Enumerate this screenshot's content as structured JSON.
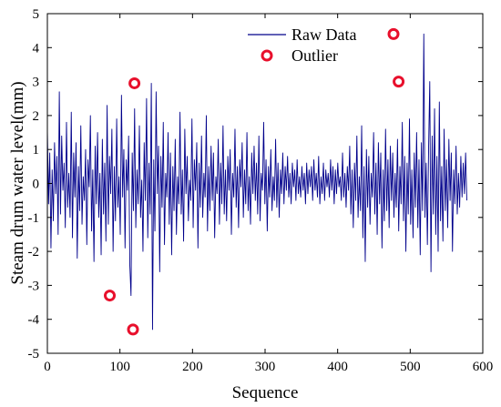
{
  "chart_data": {
    "type": "line",
    "title": "",
    "xlabel": "Sequence",
    "ylabel": "Steam drum water level(mm)",
    "xlim": [
      0,
      600
    ],
    "ylim": [
      -5,
      5
    ],
    "xticks": [
      0,
      100,
      200,
      300,
      400,
      500,
      600
    ],
    "yticks": [
      -5,
      -4,
      -3,
      -2,
      -1,
      0,
      1,
      2,
      3,
      4,
      5
    ],
    "grid": false,
    "legend_position": "top-right",
    "colors": {
      "raw": "#00008b",
      "outlier": "#e8102c"
    },
    "series": [
      {
        "name": "Raw Data",
        "values": [
          1.6,
          -0.6,
          0.9,
          -1.9,
          0.4,
          -1.1,
          1.2,
          -0.3,
          0.8,
          -1.5,
          2.7,
          -0.9,
          1.4,
          -0.2,
          0.6,
          -1.3,
          1.8,
          -0.7,
          0.3,
          -1.0,
          2.1,
          -1.6,
          0.9,
          -0.4,
          1.2,
          -2.2,
          0.5,
          -0.8,
          1.7,
          -1.2,
          0.2,
          -0.5,
          1.0,
          -1.8,
          0.7,
          -0.1,
          2.0,
          -1.4,
          0.4,
          -2.3,
          1.1,
          -0.6,
          1.5,
          -1.0,
          0.3,
          -2.1,
          1.3,
          -0.9,
          0.6,
          -1.7,
          2.3,
          -1.2,
          0.8,
          -0.3,
          1.6,
          -2.0,
          0.5,
          -1.1,
          1.9,
          -0.7,
          0.2,
          -1.5,
          2.6,
          -0.4,
          1.0,
          -1.9,
          0.7,
          -0.2,
          1.4,
          -2.4,
          -3.3,
          0.9,
          -0.8,
          2.2,
          -1.3,
          0.4,
          -0.6,
          1.7,
          -1.0,
          0.1,
          -2.0,
          1.2,
          -0.5,
          2.5,
          -1.6,
          0.6,
          -0.9,
          2.95,
          -4.3,
          0.7,
          -1.4,
          2.7,
          -0.3,
          1.1,
          -2.6,
          0.8,
          -0.7,
          1.8,
          -1.8,
          0.3,
          -0.4,
          1.5,
          -1.2,
          0.9,
          -2.1,
          0.5,
          -0.8,
          1.3,
          -1.5,
          0.2,
          -0.6,
          2.1,
          -0.9,
          0.4,
          -1.7,
          1.6,
          -0.3,
          0.8,
          -1.1,
          0.1,
          -0.5,
          1.9,
          -1.3,
          0.7,
          -0.2,
          1.2,
          -1.9,
          0.6,
          -0.7,
          1.4,
          -1.0,
          0.3,
          -0.4,
          2.0,
          -1.4,
          0.5,
          -0.8,
          1.1,
          -0.5,
          0.9,
          -1.6,
          0.2,
          -0.3,
          1.3,
          -1.2,
          0.6,
          -0.6,
          1.7,
          -0.9,
          0.4,
          -1.1,
          0.8,
          -0.2,
          1.0,
          -1.5,
          0.3,
          -0.4,
          1.6,
          -0.7,
          0.5,
          -1.3,
          0.7,
          -0.1,
          1.2,
          -1.0,
          0.4,
          -0.6,
          1.5,
          -0.8,
          0.2,
          -1.2,
          0.9,
          -0.3,
          1.1,
          -0.5,
          0.6,
          -0.9,
          1.4,
          -1.1,
          0.3,
          -0.2,
          1.8,
          -0.6,
          0.7,
          -1.4,
          0.5,
          -0.4,
          1.0,
          -0.8,
          0.2,
          -0.5,
          1.3,
          -0.7,
          0.6,
          -1.0,
          0.4,
          -0.3,
          0.9,
          -0.6,
          0.5,
          -0.2,
          0.8,
          -0.4,
          0.3,
          -0.6,
          0.6,
          -0.1,
          0.4,
          -0.5,
          0.7,
          -0.3,
          0.2,
          -0.4,
          0.5,
          -0.2,
          0.3,
          -0.6,
          0.6,
          -0.3,
          0.4,
          -0.1,
          0.5,
          -0.5,
          0.7,
          -0.2,
          0.3,
          -0.4,
          0.8,
          -0.6,
          0.2,
          -0.3,
          0.6,
          -0.5,
          0.4,
          -0.1,
          0.3,
          -0.4,
          0.7,
          -0.2,
          0.5,
          -0.6,
          0.4,
          -0.3,
          0.6,
          -0.1,
          0.2,
          -0.5,
          0.9,
          -0.4,
          0.3,
          -0.7,
          0.5,
          -0.2,
          1.1,
          -0.9,
          0.4,
          -1.3,
          0.6,
          -0.5,
          1.4,
          -1.0,
          0.2,
          -0.8,
          1.7,
          -1.6,
          0.5,
          -2.3,
          1.0,
          -0.7,
          0.8,
          -1.2,
          0.3,
          -0.4,
          1.5,
          -0.9,
          0.6,
          -1.5,
          1.2,
          -0.6,
          0.9,
          -1.9,
          0.4,
          -1.1,
          1.6,
          -0.8,
          0.7,
          -1.3,
          1.1,
          -0.5,
          0.9,
          -1.0,
          0.3,
          -0.7,
          1.3,
          -1.4,
          0.5,
          -0.6,
          1.8,
          -1.1,
          0.8,
          -2.0,
          0.6,
          -0.9,
          1.9,
          -1.2,
          0.4,
          -1.6,
          0.9,
          -0.7,
          1.5,
          -1.3,
          0.7,
          -2.1,
          1.2,
          -0.8,
          4.4,
          -1.0,
          0.6,
          -1.8,
          1.0,
          3.0,
          -2.6,
          1.4,
          -0.9,
          2.2,
          -1.5,
          0.8,
          -2.0,
          2.4,
          -1.1,
          0.5,
          -1.7,
          1.6,
          -0.8,
          0.7,
          -1.3,
          1.3,
          -0.5,
          0.9,
          -2.0,
          0.4,
          -0.6,
          1.1,
          -0.9,
          0.3,
          -0.7,
          0.8,
          -0.4,
          0.6,
          -0.3,
          0.9,
          -0.5
        ],
        "x_start": 0,
        "x_end": 578
      },
      {
        "name": "Outlier",
        "x": [
          86,
          118,
          120,
          477,
          484
        ],
        "values": [
          -3.3,
          -4.3,
          2.95,
          4.4,
          3.0
        ]
      }
    ]
  }
}
